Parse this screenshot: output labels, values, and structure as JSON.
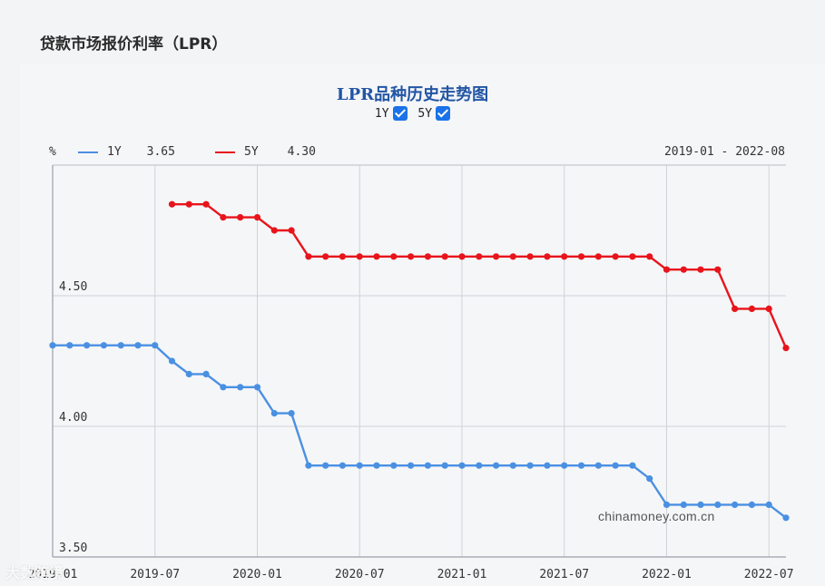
{
  "page": {
    "title": "贷款市场报价利率（LPR）",
    "watermark": "chinamoney.com.cn",
    "logo_text": "大数跨境"
  },
  "chart_data": {
    "type": "line",
    "title": "LPR品种历史走势图",
    "unit_label": "%",
    "date_range": "2019-01 - 2022-08",
    "toggles": [
      {
        "label": "1Y",
        "checked": true
      },
      {
        "label": "5Y",
        "checked": true
      }
    ],
    "x_ticks": [
      "2019-01",
      "2019-07",
      "2020-01",
      "2020-07",
      "2021-01",
      "2021-07",
      "2022-01",
      "2022-07"
    ],
    "y_ticks": [
      "3.50",
      "4.00",
      "4.50"
    ],
    "ylim": [
      3.5,
      5.0
    ],
    "series": [
      {
        "name": "1Y",
        "latest": "3.65",
        "color": "#4a90e2",
        "x": [
          "2019-01",
          "2019-02",
          "2019-03",
          "2019-04",
          "2019-05",
          "2019-06",
          "2019-07",
          "2019-08",
          "2019-09",
          "2019-10",
          "2019-11",
          "2019-12",
          "2020-01",
          "2020-02",
          "2020-03",
          "2020-04",
          "2020-05",
          "2020-06",
          "2020-07",
          "2020-08",
          "2020-09",
          "2020-10",
          "2020-11",
          "2020-12",
          "2021-01",
          "2021-02",
          "2021-03",
          "2021-04",
          "2021-05",
          "2021-06",
          "2021-07",
          "2021-08",
          "2021-09",
          "2021-10",
          "2021-11",
          "2021-12",
          "2022-01",
          "2022-02",
          "2022-03",
          "2022-04",
          "2022-05",
          "2022-06",
          "2022-07",
          "2022-08"
        ],
        "values": [
          4.31,
          4.31,
          4.31,
          4.31,
          4.31,
          4.31,
          4.31,
          4.25,
          4.2,
          4.2,
          4.15,
          4.15,
          4.15,
          4.05,
          4.05,
          3.85,
          3.85,
          3.85,
          3.85,
          3.85,
          3.85,
          3.85,
          3.85,
          3.85,
          3.85,
          3.85,
          3.85,
          3.85,
          3.85,
          3.85,
          3.85,
          3.85,
          3.85,
          3.85,
          3.85,
          3.8,
          3.7,
          3.7,
          3.7,
          3.7,
          3.7,
          3.7,
          3.7,
          3.65
        ]
      },
      {
        "name": "5Y",
        "latest": "4.30",
        "color": "#e8141b",
        "x": [
          "2019-08",
          "2019-09",
          "2019-10",
          "2019-11",
          "2019-12",
          "2020-01",
          "2020-02",
          "2020-03",
          "2020-04",
          "2020-05",
          "2020-06",
          "2020-07",
          "2020-08",
          "2020-09",
          "2020-10",
          "2020-11",
          "2020-12",
          "2021-01",
          "2021-02",
          "2021-03",
          "2021-04",
          "2021-05",
          "2021-06",
          "2021-07",
          "2021-08",
          "2021-09",
          "2021-10",
          "2021-11",
          "2021-12",
          "2022-01",
          "2022-02",
          "2022-03",
          "2022-04",
          "2022-05",
          "2022-06",
          "2022-07",
          "2022-08"
        ],
        "values": [
          4.85,
          4.85,
          4.85,
          4.8,
          4.8,
          4.8,
          4.75,
          4.75,
          4.65,
          4.65,
          4.65,
          4.65,
          4.65,
          4.65,
          4.65,
          4.65,
          4.65,
          4.65,
          4.65,
          4.65,
          4.65,
          4.65,
          4.65,
          4.65,
          4.65,
          4.65,
          4.65,
          4.65,
          4.65,
          4.6,
          4.6,
          4.6,
          4.6,
          4.45,
          4.45,
          4.45,
          4.3
        ]
      }
    ]
  }
}
